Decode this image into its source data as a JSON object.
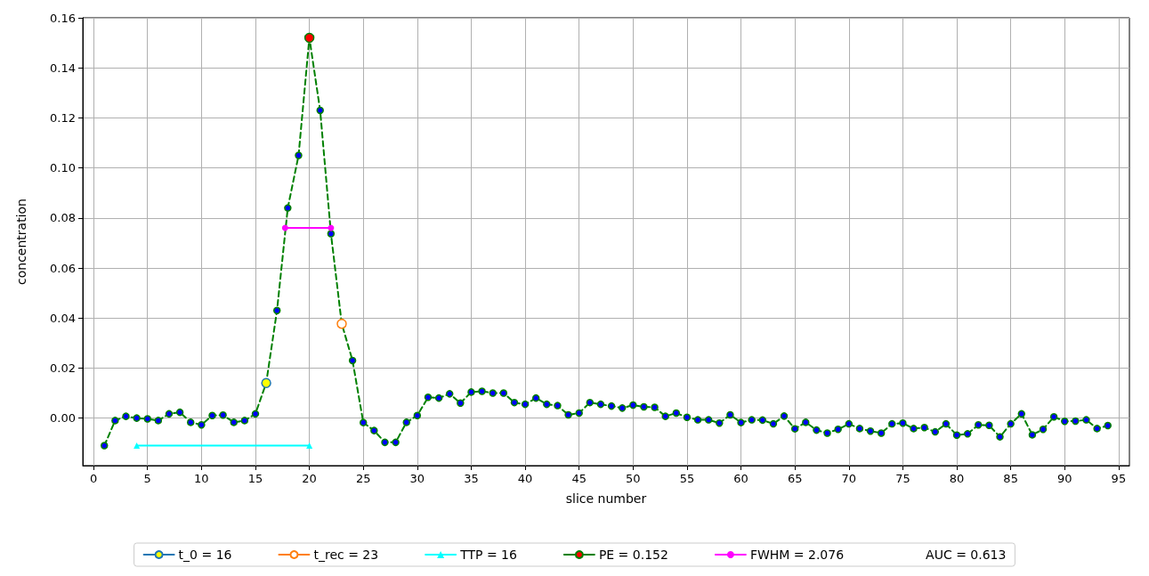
{
  "chart_data": {
    "type": "line",
    "xlabel": "slice number",
    "ylabel": "concentration",
    "xlim": [
      -1,
      96
    ],
    "ylim": [
      -0.019,
      0.16
    ],
    "xticks": [
      0,
      5,
      10,
      15,
      20,
      25,
      30,
      35,
      40,
      45,
      50,
      55,
      60,
      65,
      70,
      75,
      80,
      85,
      90,
      95
    ],
    "yticks": [
      {
        "value": 0,
        "label": "0.00"
      },
      {
        "value": 0.02,
        "label": "0.02"
      },
      {
        "value": 0.04,
        "label": "0.04"
      },
      {
        "value": 0.06,
        "label": "0.06"
      },
      {
        "value": 0.08,
        "label": "0.08"
      },
      {
        "value": 0.1,
        "label": "0.10"
      },
      {
        "value": 0.12,
        "label": "0.12"
      },
      {
        "value": 0.14,
        "label": "0.14"
      },
      {
        "value": 0.16,
        "label": "0.16"
      }
    ],
    "grid": true,
    "legend": "bottom",
    "annotations": [
      "AUC = 0.613"
    ],
    "series": [
      {
        "color": "#008000",
        "line_style": "dashed",
        "marker": "circle",
        "x": [
          1,
          2,
          3,
          4,
          5,
          6,
          7,
          8,
          9,
          10,
          11,
          12,
          13,
          14,
          15,
          16,
          17,
          18,
          19,
          20,
          21,
          22,
          23,
          24,
          25,
          26,
          27,
          28,
          29,
          30,
          31,
          32,
          33,
          34,
          35,
          36,
          37,
          38,
          39,
          40,
          41,
          42,
          43,
          44,
          45,
          46,
          47,
          48,
          49,
          50,
          51,
          52,
          53,
          54,
          55,
          56,
          57,
          58,
          59,
          60,
          61,
          62,
          63,
          64,
          65,
          66,
          67,
          68,
          69,
          70,
          71,
          72,
          73,
          74,
          75,
          76,
          77,
          78,
          79,
          80,
          81,
          82,
          83,
          84,
          85,
          86,
          87,
          88,
          89,
          90,
          91,
          92,
          93,
          94
        ],
        "values": [
          -0.011,
          -0.001,
          0.0007,
          0,
          -0.0003,
          -0.001,
          0.0017,
          0.0023,
          -0.0017,
          -0.0027,
          0.001,
          0.0012,
          -0.0017,
          -0.001,
          0.0017,
          0.014,
          0.043,
          0.084,
          0.105,
          0.152,
          0.123,
          0.0737,
          0.0377,
          0.023,
          -0.0018,
          -0.005,
          -0.0097,
          -0.0097,
          -0.0017,
          0.001,
          0.0083,
          0.008,
          0.0097,
          0.006,
          0.0104,
          0.0107,
          0.01,
          0.01,
          0.0062,
          0.0055,
          0.008,
          0.0055,
          0.005,
          0.0013,
          0.002,
          0.0062,
          0.0055,
          0.0048,
          0.004,
          0.0052,
          0.0045,
          0.0043,
          0.0007,
          0.002,
          0.0003,
          -0.0007,
          -0.0007,
          -0.002,
          0.0013,
          -0.0018,
          -0.0007,
          -0.0008,
          -0.0023,
          0.0008,
          -0.0043,
          -0.0017,
          -0.0048,
          -0.006,
          -0.0045,
          -0.0023,
          -0.0042,
          -0.0052,
          -0.006,
          -0.0023,
          -0.002,
          -0.0042,
          -0.0038,
          -0.0055,
          -0.0023,
          -0.0068,
          -0.0063,
          -0.0027,
          -0.0029,
          -0.0075,
          -0.0023,
          0.0017,
          -0.0067,
          -0.0045,
          0.0005,
          -0.0013,
          -0.0012,
          -0.0007,
          -0.0042,
          -0.003
        ]
      },
      {
        "name": "t_0 = 16",
        "color": "#1f77b4",
        "marker": "circle",
        "x": [
          16
        ],
        "values": [
          0.014
        ]
      },
      {
        "name": "t_rec = 23",
        "color": "#ff7f0e",
        "marker": "circle",
        "x": [
          23
        ],
        "values": [
          0.0377
        ]
      },
      {
        "name": "TTP = 16",
        "color": "#00ffff",
        "marker": "triangle",
        "x": [
          4,
          20
        ],
        "values": [
          -0.011,
          -0.011
        ]
      },
      {
        "name": "PE = 0.152",
        "color": "#008000",
        "marker": "circle",
        "x": [
          20
        ],
        "values": [
          0.152
        ]
      },
      {
        "name": "FWHM = 2.076",
        "color": "#ff00ff",
        "marker": "circle",
        "x": [
          17.75,
          22
        ],
        "values": [
          0.076,
          0.076
        ]
      }
    ]
  }
}
